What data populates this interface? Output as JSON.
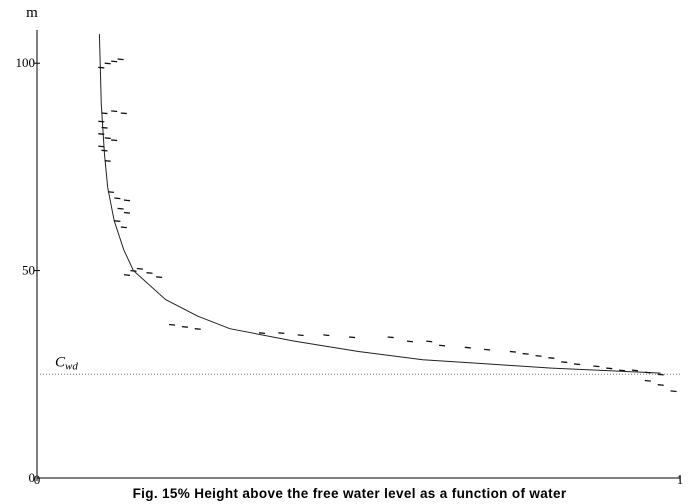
{
  "chart_data": {
    "type": "scatter",
    "title": "",
    "ylabel": "m",
    "xlabel": "",
    "xlim": [
      0,
      1
    ],
    "ylim": [
      0,
      108
    ],
    "xticks": [
      {
        "value": 0,
        "label": "0"
      },
      {
        "value": 1,
        "label": "1"
      }
    ],
    "yticks": [
      {
        "value": 0,
        "label": "0"
      },
      {
        "value": 50,
        "label": "50"
      },
      {
        "value": 100,
        "label": "100"
      }
    ],
    "grid": false,
    "legend": "none",
    "reference_line": {
      "label": "C",
      "label_sub": "wd",
      "y": 25
    },
    "fitted_curve": {
      "points": [
        {
          "x": 0.097,
          "y": 107
        },
        {
          "x": 0.1,
          "y": 90
        },
        {
          "x": 0.105,
          "y": 78
        },
        {
          "x": 0.11,
          "y": 70
        },
        {
          "x": 0.12,
          "y": 62
        },
        {
          "x": 0.135,
          "y": 55
        },
        {
          "x": 0.15,
          "y": 50
        },
        {
          "x": 0.2,
          "y": 43
        },
        {
          "x": 0.25,
          "y": 39
        },
        {
          "x": 0.3,
          "y": 36
        },
        {
          "x": 0.4,
          "y": 33
        },
        {
          "x": 0.5,
          "y": 30.5
        },
        {
          "x": 0.6,
          "y": 28.5
        },
        {
          "x": 0.7,
          "y": 27.5
        },
        {
          "x": 0.8,
          "y": 26.5
        },
        {
          "x": 0.9,
          "y": 25.8
        },
        {
          "x": 0.97,
          "y": 25.3
        }
      ]
    },
    "series": [
      {
        "points": [
          {
            "x": 0.1,
            "y": 99
          },
          {
            "x": 0.11,
            "y": 100
          },
          {
            "x": 0.12,
            "y": 100.5
          },
          {
            "x": 0.13,
            "y": 101
          },
          {
            "x": 0.105,
            "y": 88
          },
          {
            "x": 0.12,
            "y": 88.5
          },
          {
            "x": 0.135,
            "y": 88
          },
          {
            "x": 0.1,
            "y": 86
          },
          {
            "x": 0.105,
            "y": 84.5
          },
          {
            "x": 0.1,
            "y": 83
          },
          {
            "x": 0.11,
            "y": 82
          },
          {
            "x": 0.12,
            "y": 81.5
          },
          {
            "x": 0.1,
            "y": 80
          },
          {
            "x": 0.105,
            "y": 79
          },
          {
            "x": 0.11,
            "y": 76.5
          },
          {
            "x": 0.115,
            "y": 69
          },
          {
            "x": 0.125,
            "y": 67.5
          },
          {
            "x": 0.14,
            "y": 67
          },
          {
            "x": 0.13,
            "y": 65
          },
          {
            "x": 0.14,
            "y": 64
          },
          {
            "x": 0.125,
            "y": 62
          },
          {
            "x": 0.135,
            "y": 60.5
          },
          {
            "x": 0.14,
            "y": 49
          },
          {
            "x": 0.15,
            "y": 50
          },
          {
            "x": 0.16,
            "y": 50.5
          },
          {
            "x": 0.175,
            "y": 49.5
          },
          {
            "x": 0.19,
            "y": 48.5
          },
          {
            "x": 0.21,
            "y": 37
          },
          {
            "x": 0.23,
            "y": 36.5
          },
          {
            "x": 0.25,
            "y": 36
          },
          {
            "x": 0.35,
            "y": 35
          },
          {
            "x": 0.38,
            "y": 35
          },
          {
            "x": 0.41,
            "y": 34.5
          },
          {
            "x": 0.45,
            "y": 34.5
          },
          {
            "x": 0.49,
            "y": 34
          },
          {
            "x": 0.55,
            "y": 34
          },
          {
            "x": 0.58,
            "y": 33
          },
          {
            "x": 0.61,
            "y": 33
          },
          {
            "x": 0.63,
            "y": 32
          },
          {
            "x": 0.67,
            "y": 31.5
          },
          {
            "x": 0.7,
            "y": 31
          },
          {
            "x": 0.74,
            "y": 30.5
          },
          {
            "x": 0.76,
            "y": 30
          },
          {
            "x": 0.78,
            "y": 29.5
          },
          {
            "x": 0.8,
            "y": 29
          },
          {
            "x": 0.82,
            "y": 28
          },
          {
            "x": 0.84,
            "y": 27.5
          },
          {
            "x": 0.87,
            "y": 27
          },
          {
            "x": 0.89,
            "y": 26.5
          },
          {
            "x": 0.91,
            "y": 26
          },
          {
            "x": 0.93,
            "y": 26
          },
          {
            "x": 0.95,
            "y": 25.5
          },
          {
            "x": 0.97,
            "y": 25
          },
          {
            "x": 0.95,
            "y": 23.5
          },
          {
            "x": 0.97,
            "y": 22.5
          },
          {
            "x": 0.99,
            "y": 21
          }
        ]
      }
    ]
  },
  "caption": "Fig. 15% Height above the free water level as a function of water"
}
